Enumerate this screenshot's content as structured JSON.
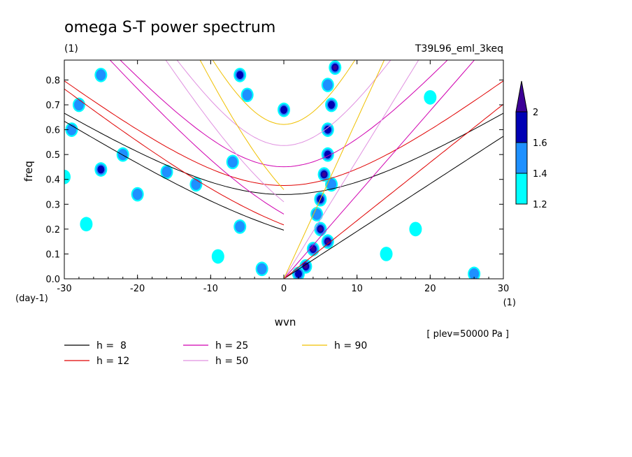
{
  "chart_data": {
    "type": "heatmap",
    "title": "omega S-T power spectrum",
    "subtitle": "(1)",
    "experiment": "T39L96_eml_3keq",
    "xlabel": "wvn",
    "ylabel": "freq",
    "x_units": "(1)",
    "y_units": "(day-1)",
    "xlim": [
      -30,
      30
    ],
    "ylim": [
      0,
      0.88
    ],
    "xticks": [
      -30,
      -20,
      -10,
      0,
      10,
      20,
      30
    ],
    "yticks": [
      0.0,
      0.1,
      0.2,
      0.3,
      0.4,
      0.5,
      0.6,
      0.7,
      0.8
    ],
    "level_note": "[ plev=50000 Pa ]",
    "colorbar": {
      "levels": [
        "1.2",
        "1.4",
        "1.6",
        "2"
      ],
      "colors": [
        "#00ffff",
        "#1e90ff",
        "#0000b4",
        "#3c0096"
      ]
    },
    "dispersion_curves": [
      {
        "label": "h =  8",
        "h": 8,
        "color": "#000000"
      },
      {
        "label": "h = 12",
        "h": 12,
        "color": "#e00000"
      },
      {
        "label": "h = 25",
        "h": 25,
        "color": "#d000b0"
      },
      {
        "label": "h = 50",
        "h": 50,
        "color": "#e090e0"
      },
      {
        "label": "h = 90",
        "h": 90,
        "color": "#f0c000"
      }
    ],
    "blobs": [
      {
        "x": 3,
        "y": 0.05,
        "level": 3
      },
      {
        "x": 4,
        "y": 0.12,
        "level": 3
      },
      {
        "x": 5,
        "y": 0.2,
        "level": 3
      },
      {
        "x": 6,
        "y": 0.15,
        "level": 3
      },
      {
        "x": 5,
        "y": 0.32,
        "level": 2
      },
      {
        "x": 5.5,
        "y": 0.42,
        "level": 3
      },
      {
        "x": 6,
        "y": 0.5,
        "level": 2
      },
      {
        "x": 6,
        "y": 0.6,
        "level": 2
      },
      {
        "x": 6.5,
        "y": 0.7,
        "level": 2
      },
      {
        "x": 7,
        "y": 0.85,
        "level": 3
      },
      {
        "x": 6,
        "y": 0.78,
        "level": 1
      },
      {
        "x": 4.5,
        "y": 0.26,
        "level": 1
      },
      {
        "x": 6.5,
        "y": 0.38,
        "level": 1
      },
      {
        "x": 2,
        "y": 0.02,
        "level": 2
      },
      {
        "x": -6,
        "y": 0.82,
        "level": 2
      },
      {
        "x": -5,
        "y": 0.74,
        "level": 1
      },
      {
        "x": 0,
        "y": 0.68,
        "level": 2
      },
      {
        "x": -28,
        "y": 0.7,
        "level": 1
      },
      {
        "x": -29,
        "y": 0.6,
        "level": 1
      },
      {
        "x": -25,
        "y": 0.44,
        "level": 2
      },
      {
        "x": -22,
        "y": 0.5,
        "level": 1
      },
      {
        "x": -16,
        "y": 0.43,
        "level": 1
      },
      {
        "x": -20,
        "y": 0.34,
        "level": 1
      },
      {
        "x": -25,
        "y": 0.82,
        "level": 1
      },
      {
        "x": -7,
        "y": 0.47,
        "level": 1
      },
      {
        "x": -12,
        "y": 0.38,
        "level": 1
      },
      {
        "x": -3,
        "y": 0.04,
        "level": 1
      },
      {
        "x": -6,
        "y": 0.21,
        "level": 1
      },
      {
        "x": -9,
        "y": 0.09,
        "level": 0
      },
      {
        "x": 26,
        "y": 0.02,
        "level": 1
      },
      {
        "x": 18,
        "y": 0.2,
        "level": 0
      },
      {
        "x": 14,
        "y": 0.1,
        "level": 0
      },
      {
        "x": 20,
        "y": 0.73,
        "level": 0
      },
      {
        "x": -30,
        "y": 0.41,
        "level": 0
      },
      {
        "x": -27,
        "y": 0.22,
        "level": 0
      }
    ]
  }
}
